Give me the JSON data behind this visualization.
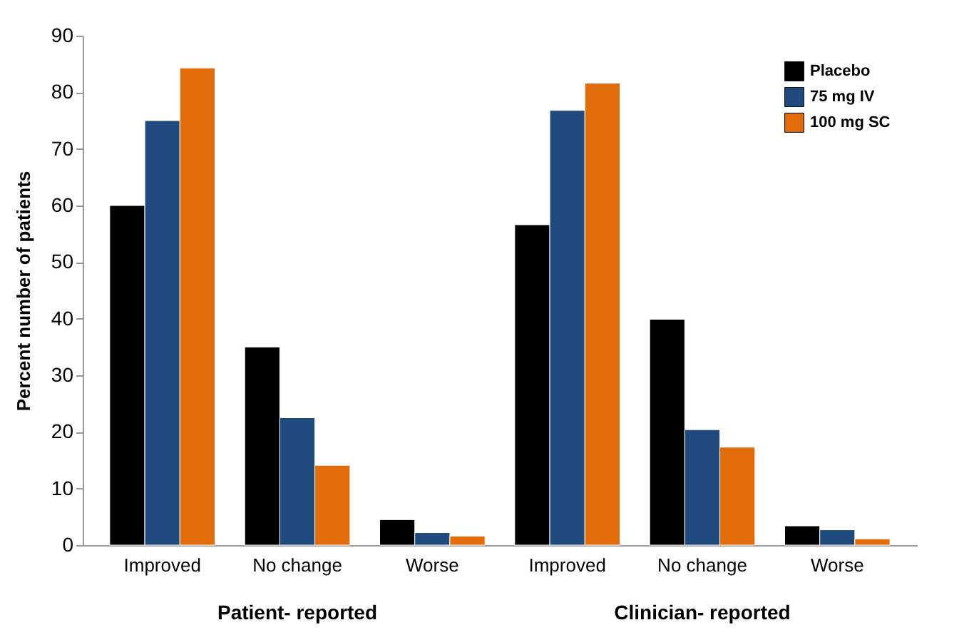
{
  "chart_data": {
    "type": "bar",
    "ylabel": "Percent number of patients",
    "categories": [
      "Improved",
      "No change",
      "Worse",
      "Improved",
      "No change",
      "Worse"
    ],
    "series": [
      {
        "name": "Placebo",
        "color": "#000000",
        "values": [
          60,
          35,
          4.5,
          56.6,
          39.9,
          3.4
        ]
      },
      {
        "name": "75 mg IV",
        "color": "#1f4a7e",
        "values": [
          75,
          22.5,
          2.2,
          76.8,
          20.4,
          2.7
        ]
      },
      {
        "name": "100 mg SC",
        "color": "#e36c0a",
        "values": [
          84.3,
          14.1,
          1.6,
          81.6,
          17.3,
          1.1
        ]
      }
    ],
    "ylim": [
      0,
      90
    ],
    "yticks": [
      0,
      10,
      20,
      30,
      40,
      50,
      60,
      70,
      80,
      90
    ],
    "grid": false,
    "legend": "top right",
    "annotations": [
      "Patient- reported",
      "Clinician- reported"
    ]
  }
}
